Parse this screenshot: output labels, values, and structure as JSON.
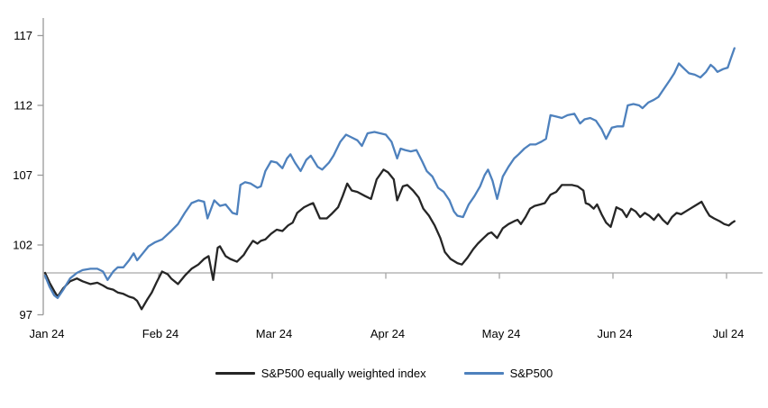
{
  "page": {
    "background": "#ffffff"
  },
  "colors": {
    "eqw_line": "#262626",
    "spx_line": "#4e81bd",
    "axis_line": "#999999",
    "baseline_line": "#a6a6a6",
    "tick_text": "#000000"
  },
  "legend": {
    "items": [
      {
        "label": "S&P500 equally weighted index",
        "color": "#262626"
      },
      {
        "label": "S&P500",
        "color": "#4e81bd"
      }
    ]
  },
  "chart_data": {
    "type": "line",
    "title": "",
    "xlabel": "",
    "ylabel": "",
    "grid": false,
    "legend_position": "bottom",
    "x_axis": {
      "unit": "months since 1 Jan 2024",
      "tick_positions": [
        0,
        1,
        2,
        3,
        4,
        5,
        6
      ],
      "tick_labels": [
        "Jan 24",
        "Feb 24",
        "Mar 24",
        "Apr 24",
        "May 24",
        "Jun 24",
        "Jul 24"
      ]
    },
    "y_axis": {
      "min": 97,
      "max": 117,
      "ticks": [
        97,
        102,
        107,
        112,
        117
      ],
      "baseline_value": 100
    },
    "series": [
      {
        "name": "S&P500 equally weighted index",
        "color": "#262626",
        "points": [
          [
            0,
            100.0
          ],
          [
            0.04,
            99.3
          ],
          [
            0.08,
            98.7
          ],
          [
            0.11,
            98.3
          ],
          [
            0.16,
            98.9
          ],
          [
            0.22,
            99.4
          ],
          [
            0.28,
            99.6
          ],
          [
            0.33,
            99.4
          ],
          [
            0.4,
            99.2
          ],
          [
            0.46,
            99.3
          ],
          [
            0.51,
            99.1
          ],
          [
            0.55,
            98.9
          ],
          [
            0.6,
            98.8
          ],
          [
            0.64,
            98.6
          ],
          [
            0.69,
            98.5
          ],
          [
            0.74,
            98.3
          ],
          [
            0.78,
            98.2
          ],
          [
            0.81,
            98.0
          ],
          [
            0.85,
            97.4
          ],
          [
            0.9,
            98.1
          ],
          [
            0.94,
            98.6
          ],
          [
            0.98,
            99.3
          ],
          [
            1.03,
            100.1
          ],
          [
            1.08,
            99.9
          ],
          [
            1.11,
            99.6
          ],
          [
            1.17,
            99.2
          ],
          [
            1.23,
            99.8
          ],
          [
            1.29,
            100.3
          ],
          [
            1.35,
            100.6
          ],
          [
            1.4,
            101.0
          ],
          [
            1.44,
            101.2
          ],
          [
            1.48,
            99.5
          ],
          [
            1.52,
            101.8
          ],
          [
            1.54,
            101.9
          ],
          [
            1.59,
            101.2
          ],
          [
            1.63,
            101.0
          ],
          [
            1.69,
            100.8
          ],
          [
            1.75,
            101.3
          ],
          [
            1.78,
            101.7
          ],
          [
            1.83,
            102.3
          ],
          [
            1.87,
            102.1
          ],
          [
            1.9,
            102.3
          ],
          [
            1.94,
            102.4
          ],
          [
            1.99,
            102.8
          ],
          [
            2.04,
            103.1
          ],
          [
            2.09,
            103.0
          ],
          [
            2.14,
            103.4
          ],
          [
            2.18,
            103.6
          ],
          [
            2.22,
            104.3
          ],
          [
            2.28,
            104.7
          ],
          [
            2.33,
            104.9
          ],
          [
            2.36,
            105.0
          ],
          [
            2.42,
            103.9
          ],
          [
            2.48,
            103.9
          ],
          [
            2.52,
            104.2
          ],
          [
            2.58,
            104.7
          ],
          [
            2.62,
            105.5
          ],
          [
            2.66,
            106.4
          ],
          [
            2.7,
            105.9
          ],
          [
            2.75,
            105.8
          ],
          [
            2.82,
            105.5
          ],
          [
            2.87,
            105.3
          ],
          [
            2.92,
            106.7
          ],
          [
            2.98,
            107.4
          ],
          [
            3.02,
            107.2
          ],
          [
            3.07,
            106.7
          ],
          [
            3.1,
            105.2
          ],
          [
            3.15,
            106.2
          ],
          [
            3.19,
            106.3
          ],
          [
            3.24,
            105.9
          ],
          [
            3.29,
            105.4
          ],
          [
            3.33,
            104.6
          ],
          [
            3.38,
            104.1
          ],
          [
            3.43,
            103.4
          ],
          [
            3.48,
            102.5
          ],
          [
            3.52,
            101.5
          ],
          [
            3.57,
            101.0
          ],
          [
            3.63,
            100.7
          ],
          [
            3.67,
            100.6
          ],
          [
            3.72,
            101.1
          ],
          [
            3.77,
            101.7
          ],
          [
            3.81,
            102.1
          ],
          [
            3.86,
            102.5
          ],
          [
            3.9,
            102.8
          ],
          [
            3.93,
            102.9
          ],
          [
            3.98,
            102.5
          ],
          [
            4.03,
            103.2
          ],
          [
            4.08,
            103.5
          ],
          [
            4.13,
            103.7
          ],
          [
            4.16,
            103.8
          ],
          [
            4.19,
            103.5
          ],
          [
            4.23,
            104.0
          ],
          [
            4.27,
            104.6
          ],
          [
            4.31,
            104.8
          ],
          [
            4.36,
            104.9
          ],
          [
            4.4,
            105.0
          ],
          [
            4.45,
            105.6
          ],
          [
            4.5,
            105.8
          ],
          [
            4.55,
            106.3
          ],
          [
            4.6,
            106.3
          ],
          [
            4.64,
            106.3
          ],
          [
            4.69,
            106.2
          ],
          [
            4.74,
            105.9
          ],
          [
            4.76,
            105.0
          ],
          [
            4.79,
            104.9
          ],
          [
            4.83,
            104.6
          ],
          [
            4.86,
            104.9
          ],
          [
            4.9,
            104.2
          ],
          [
            4.94,
            103.6
          ],
          [
            4.98,
            103.3
          ],
          [
            5.03,
            104.7
          ],
          [
            5.08,
            104.5
          ],
          [
            5.12,
            104.0
          ],
          [
            5.16,
            104.6
          ],
          [
            5.2,
            104.4
          ],
          [
            5.24,
            104.0
          ],
          [
            5.28,
            104.3
          ],
          [
            5.32,
            104.1
          ],
          [
            5.36,
            103.8
          ],
          [
            5.4,
            104.2
          ],
          [
            5.44,
            103.8
          ],
          [
            5.48,
            103.5
          ],
          [
            5.52,
            104.0
          ],
          [
            5.56,
            104.3
          ],
          [
            5.6,
            104.2
          ],
          [
            5.64,
            104.4
          ],
          [
            5.68,
            104.6
          ],
          [
            5.72,
            104.8
          ],
          [
            5.78,
            105.1
          ],
          [
            5.82,
            104.5
          ],
          [
            5.85,
            104.1
          ],
          [
            5.89,
            103.9
          ],
          [
            5.94,
            103.7
          ],
          [
            5.98,
            103.5
          ],
          [
            6.02,
            103.4
          ],
          [
            6.05,
            103.6
          ],
          [
            6.07,
            103.7
          ]
        ]
      },
      {
        "name": "S&P500",
        "color": "#4e81bd",
        "points": [
          [
            0,
            99.8
          ],
          [
            0.04,
            99.0
          ],
          [
            0.08,
            98.4
          ],
          [
            0.11,
            98.2
          ],
          [
            0.16,
            98.8
          ],
          [
            0.22,
            99.6
          ],
          [
            0.28,
            100.0
          ],
          [
            0.33,
            100.2
          ],
          [
            0.4,
            100.3
          ],
          [
            0.46,
            100.3
          ],
          [
            0.51,
            100.1
          ],
          [
            0.55,
            99.5
          ],
          [
            0.6,
            100.1
          ],
          [
            0.64,
            100.4
          ],
          [
            0.69,
            100.4
          ],
          [
            0.74,
            100.9
          ],
          [
            0.78,
            101.4
          ],
          [
            0.81,
            100.9
          ],
          [
            0.86,
            101.4
          ],
          [
            0.91,
            101.9
          ],
          [
            0.97,
            102.2
          ],
          [
            1.03,
            102.4
          ],
          [
            1.11,
            103.0
          ],
          [
            1.17,
            103.5
          ],
          [
            1.23,
            104.3
          ],
          [
            1.29,
            105.0
          ],
          [
            1.35,
            105.2
          ],
          [
            1.4,
            105.1
          ],
          [
            1.43,
            103.9
          ],
          [
            1.49,
            105.2
          ],
          [
            1.54,
            104.8
          ],
          [
            1.59,
            104.9
          ],
          [
            1.65,
            104.3
          ],
          [
            1.69,
            104.2
          ],
          [
            1.72,
            106.3
          ],
          [
            1.76,
            106.5
          ],
          [
            1.81,
            106.4
          ],
          [
            1.87,
            106.1
          ],
          [
            1.9,
            106.2
          ],
          [
            1.94,
            107.3
          ],
          [
            1.99,
            108.0
          ],
          [
            2.04,
            107.9
          ],
          [
            2.09,
            107.5
          ],
          [
            2.13,
            108.2
          ],
          [
            2.16,
            108.5
          ],
          [
            2.2,
            107.9
          ],
          [
            2.25,
            107.3
          ],
          [
            2.3,
            108.1
          ],
          [
            2.34,
            108.4
          ],
          [
            2.4,
            107.6
          ],
          [
            2.44,
            107.4
          ],
          [
            2.5,
            107.9
          ],
          [
            2.54,
            108.4
          ],
          [
            2.6,
            109.4
          ],
          [
            2.65,
            109.9
          ],
          [
            2.7,
            109.7
          ],
          [
            2.75,
            109.5
          ],
          [
            2.79,
            109.1
          ],
          [
            2.84,
            110.0
          ],
          [
            2.9,
            110.1
          ],
          [
            2.95,
            110.0
          ],
          [
            3.0,
            109.9
          ],
          [
            3.05,
            109.4
          ],
          [
            3.1,
            108.2
          ],
          [
            3.13,
            108.9
          ],
          [
            3.17,
            108.8
          ],
          [
            3.22,
            108.7
          ],
          [
            3.27,
            108.8
          ],
          [
            3.32,
            108.0
          ],
          [
            3.36,
            107.3
          ],
          [
            3.41,
            106.9
          ],
          [
            3.46,
            106.1
          ],
          [
            3.51,
            105.8
          ],
          [
            3.56,
            105.2
          ],
          [
            3.6,
            104.4
          ],
          [
            3.63,
            104.1
          ],
          [
            3.68,
            104.0
          ],
          [
            3.73,
            104.9
          ],
          [
            3.78,
            105.5
          ],
          [
            3.83,
            106.2
          ],
          [
            3.87,
            107.0
          ],
          [
            3.9,
            107.4
          ],
          [
            3.94,
            106.6
          ],
          [
            3.98,
            105.3
          ],
          [
            4.03,
            106.9
          ],
          [
            4.08,
            107.6
          ],
          [
            4.13,
            108.2
          ],
          [
            4.17,
            108.5
          ],
          [
            4.22,
            108.9
          ],
          [
            4.27,
            109.2
          ],
          [
            4.32,
            109.2
          ],
          [
            4.37,
            109.4
          ],
          [
            4.41,
            109.6
          ],
          [
            4.45,
            111.3
          ],
          [
            4.5,
            111.2
          ],
          [
            4.55,
            111.1
          ],
          [
            4.6,
            111.3
          ],
          [
            4.66,
            111.4
          ],
          [
            4.71,
            110.7
          ],
          [
            4.75,
            111.0
          ],
          [
            4.8,
            111.1
          ],
          [
            4.85,
            110.9
          ],
          [
            4.9,
            110.3
          ],
          [
            4.94,
            109.6
          ],
          [
            4.99,
            110.4
          ],
          [
            5.04,
            110.5
          ],
          [
            5.09,
            110.5
          ],
          [
            5.13,
            112.0
          ],
          [
            5.18,
            112.1
          ],
          [
            5.23,
            112.0
          ],
          [
            5.26,
            111.8
          ],
          [
            5.31,
            112.2
          ],
          [
            5.36,
            112.4
          ],
          [
            5.4,
            112.6
          ],
          [
            5.45,
            113.2
          ],
          [
            5.5,
            113.8
          ],
          [
            5.54,
            114.3
          ],
          [
            5.58,
            115.0
          ],
          [
            5.63,
            114.6
          ],
          [
            5.67,
            114.3
          ],
          [
            5.72,
            114.2
          ],
          [
            5.77,
            114.0
          ],
          [
            5.82,
            114.4
          ],
          [
            5.86,
            114.9
          ],
          [
            5.89,
            114.7
          ],
          [
            5.92,
            114.4
          ],
          [
            5.97,
            114.6
          ],
          [
            6.01,
            114.7
          ],
          [
            6.04,
            115.4
          ],
          [
            6.07,
            116.1
          ]
        ]
      }
    ]
  }
}
